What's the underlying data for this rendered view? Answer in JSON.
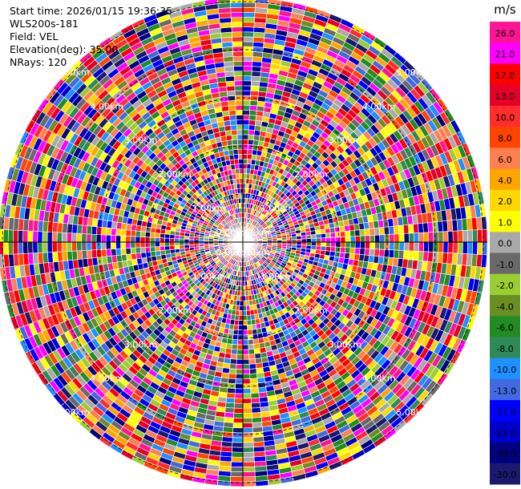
{
  "header": {
    "start_time": "Start time: 2026/01/15 19:36:35",
    "instrument": "WLS200s-181",
    "field": "Field: VEL",
    "elevation": "Elevation(deg): 35.00",
    "nrays": "NRays: 120"
  },
  "chart_data": {
    "type": "ppi-polar-scan",
    "field": "VEL",
    "units": "m/s",
    "elevation_deg": 35.0,
    "n_rays": 120,
    "range_rings_km": [
      "0.00km",
      "1.00km",
      "2.00km",
      "3.00km",
      "4.00km",
      "5.00km"
    ],
    "colorbar": {
      "unit_label": "m/s",
      "ticks": [
        "26.0",
        "21.0",
        "17.0",
        "13.0",
        "10.0",
        "8.0",
        "6.0",
        "4.0",
        "2.0",
        "1.0",
        "0.0",
        "-1.0",
        "-2.0",
        "-4.0",
        "-6.0",
        "-8.0",
        "-10.0",
        "-13.0",
        "-17.0",
        "-21.0",
        "-26.0",
        "-30.0"
      ],
      "colors": [
        "#ff1493",
        "#ff00ff",
        "#ff0000",
        "#e60028",
        "#ff2d2d",
        "#ff4500",
        "#ff7f50",
        "#ffa500",
        "#ffd700",
        "#ffff00",
        "#a9a9a9",
        "#696969",
        "#9acd32",
        "#6b8e23",
        "#228b22",
        "#2e8b57",
        "#1e90ff",
        "#4169e1",
        "#0000ff",
        "#0000cd",
        "#000080",
        "#191970"
      ]
    }
  }
}
